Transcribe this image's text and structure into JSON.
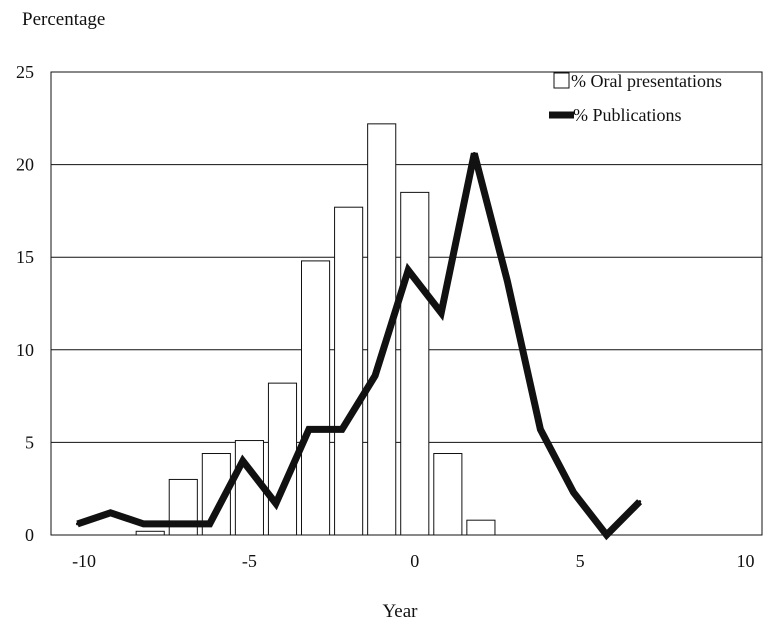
{
  "chart_data": {
    "type": "bar",
    "ylabel": "Percentage",
    "xlabel": "Year",
    "xlim": [
      -11,
      10.5
    ],
    "ylim": [
      0,
      25
    ],
    "xticks": [
      -10,
      -5,
      0,
      5,
      10
    ],
    "xtick_labels": [
      "-10",
      "-5",
      "0",
      "5",
      "10"
    ],
    "yticks": [
      0,
      5,
      10,
      15,
      20,
      25
    ],
    "ytick_labels": [
      "0",
      "5",
      "10",
      "15",
      "20",
      "25"
    ],
    "grid": "horizontal",
    "legend_position": "top-right",
    "series": [
      {
        "name": "% Oral presentations",
        "type": "bar",
        "x": [
          -8,
          -7,
          -6,
          -5,
          -4,
          -3,
          -2,
          -1,
          0,
          1,
          2
        ],
        "values": [
          0.2,
          3.0,
          4.4,
          5.1,
          8.2,
          14.8,
          17.7,
          22.2,
          18.5,
          4.4,
          0.8
        ],
        "color": "#ffffff",
        "stroke": "#111111"
      },
      {
        "name": "% Publications",
        "type": "line",
        "x": [
          -10.2,
          -9.2,
          -8.2,
          -7.2,
          -6.2,
          -5.2,
          -4.2,
          -3.2,
          -2.2,
          -1.2,
          -0.2,
          0.8,
          1.8,
          2.8,
          3.8,
          4.8,
          5.8,
          6.8
        ],
        "values": [
          0.6,
          1.2,
          0.6,
          0.6,
          0.6,
          4.0,
          1.7,
          5.7,
          5.7,
          8.6,
          14.3,
          12.0,
          20.6,
          13.7,
          5.7,
          2.3,
          0.0,
          1.8
        ],
        "color": "#111111"
      }
    ]
  }
}
